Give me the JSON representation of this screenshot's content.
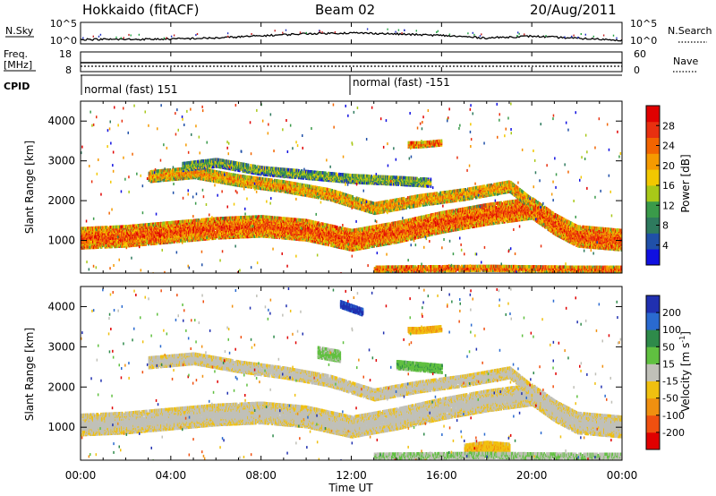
{
  "header": {
    "station": "Hokkaido (fitACF)",
    "beam": "Beam 02",
    "date": "20/Aug/2011"
  },
  "aux_panels": {
    "nsky_label": "N.Sky",
    "nsky_ticks": [
      "10^5",
      "10^0"
    ],
    "nsearch_label": "N.Search",
    "nsearch_ticks": [
      "10^5",
      "10^0"
    ],
    "freq_label_1": "Freq.",
    "freq_label_2": "[MHz]",
    "freq_ticks": [
      "18",
      "8"
    ],
    "nave_label": "Nave",
    "nave_ticks": [
      "60",
      "0"
    ],
    "cpid_label": "CPID",
    "cpid_segments": [
      {
        "label": "normal (fast) 151",
        "start_hour": 0
      },
      {
        "label": "normal (fast) -151",
        "start_hour": 12
      }
    ]
  },
  "axes": {
    "xlabel": "Time UT",
    "x_ticks": [
      "00:00",
      "04:00",
      "08:00",
      "12:00",
      "16:00",
      "20:00",
      "00:00"
    ],
    "ylabel": "Slant Range [km]",
    "y_ticks": [
      "1000",
      "2000",
      "3000",
      "4000"
    ]
  },
  "colorbars": {
    "power": {
      "label": "Power [dB]",
      "ticks": [
        "4",
        "8",
        "12",
        "16",
        "20",
        "24",
        "28"
      ],
      "colors": [
        "#1010e0",
        "#2050a8",
        "#2e7a5e",
        "#3a9a4a",
        "#a8c818",
        "#f2c800",
        "#f59a00",
        "#f26400",
        "#e83010",
        "#e00000"
      ]
    },
    "velocity": {
      "label": "Velocity [m s",
      "label_exp": "-1",
      "label_close": "]",
      "ticks": [
        "200",
        "100",
        "50",
        "15",
        "-15",
        "-50",
        "-100",
        "-200"
      ],
      "colors": [
        "#2030b0",
        "#2a6ad0",
        "#2e8a4a",
        "#60c040",
        "#c0c0b8",
        "#f0c010",
        "#f09010",
        "#f05010",
        "#e00000"
      ]
    }
  },
  "chart_data": [
    {
      "type": "line",
      "name": "N.Sky / N.Search",
      "x_unit": "hour UT",
      "x": [
        0,
        2,
        4,
        6,
        8,
        10,
        12,
        13,
        14,
        16,
        18,
        20,
        22,
        24
      ],
      "y": [
        1.0,
        1.0,
        1.1,
        1.4,
        2.0,
        2.6,
        2.8,
        2.7,
        2.5,
        2.1,
        1.4,
        1.9,
        1.3,
        0.8
      ],
      "y_scale": "log10",
      "ylim_exponent": [
        0,
        5
      ]
    },
    {
      "type": "line",
      "name": "Freq.",
      "x": [
        0,
        24
      ],
      "y": [
        12.5,
        12.5
      ],
      "ylim": [
        8,
        18
      ]
    },
    {
      "type": "line",
      "name": "Nave",
      "x": [
        0,
        24
      ],
      "y": [
        18,
        18
      ],
      "ylim": [
        0,
        60
      ]
    },
    {
      "type": "heatmap",
      "name": "Power",
      "x_unit": "hour UT",
      "xlim": [
        0,
        24
      ],
      "y_unit": "km",
      "ylim": [
        180,
        4500
      ],
      "clim": [
        0,
        32
      ],
      "bands": [
        {
          "x": [
            0,
            2,
            4,
            6,
            8,
            10,
            12,
            14,
            16,
            18,
            20,
            21,
            22,
            24
          ],
          "y": [
            1100,
            1150,
            1250,
            1350,
            1400,
            1300,
            1050,
            1250,
            1500,
            1700,
            1850,
            1450,
            1150,
            1050
          ],
          "width": 500,
          "value": 26
        },
        {
          "x": [
            3,
            5,
            7,
            9,
            11,
            13,
            15,
            17,
            19,
            20
          ],
          "y": [
            2650,
            2750,
            2550,
            2400,
            2200,
            1850,
            2050,
            2200,
            2400,
            1950
          ],
          "width": 260,
          "value": 22
        },
        {
          "x": [
            4.5,
            6,
            8,
            10,
            12,
            14,
            15.5
          ],
          "y": [
            2900,
            3000,
            2800,
            2700,
            2600,
            2550,
            2500
          ],
          "width": 200,
          "value": 14
        },
        {
          "x": [
            14.5,
            15,
            16
          ],
          "y": [
            3450,
            3450,
            3500
          ],
          "width": 120,
          "value": 26
        },
        {
          "x": [
            13,
            15,
            18,
            20,
            22,
            24
          ],
          "y": [
            320,
            330,
            340,
            330,
            320,
            320
          ],
          "width": 110,
          "value": 26
        }
      ]
    },
    {
      "type": "heatmap",
      "name": "Velocity",
      "x_unit": "hour UT",
      "xlim": [
        0,
        24
      ],
      "y_unit": "km",
      "ylim": [
        180,
        4500
      ],
      "clim": [
        -200,
        200
      ],
      "bands": [
        {
          "x": [
            0,
            2,
            4,
            6,
            8,
            10,
            12,
            14,
            16,
            18,
            20,
            21,
            22,
            24
          ],
          "y": [
            1100,
            1150,
            1250,
            1350,
            1400,
            1300,
            1050,
            1250,
            1500,
            1700,
            1850,
            1450,
            1150,
            1050
          ],
          "width": 500,
          "value": 0
        },
        {
          "x": [
            3,
            5,
            7,
            9,
            11,
            13,
            15,
            17,
            19,
            20
          ],
          "y": [
            2650,
            2750,
            2550,
            2400,
            2200,
            1850,
            2050,
            2200,
            2400,
            1950
          ],
          "width": 260,
          "value": 0
        },
        {
          "x": [
            10.5,
            11,
            11.5
          ],
          "y": [
            2900,
            2850,
            2800
          ],
          "width": 250,
          "value": 40
        },
        {
          "x": [
            14,
            15,
            16
          ],
          "y": [
            2600,
            2550,
            2500
          ],
          "width": 200,
          "value": 60
        },
        {
          "x": [
            14.5,
            15,
            16
          ],
          "y": [
            3450,
            3450,
            3500
          ],
          "width": 120,
          "value": -70
        },
        {
          "x": [
            11.5,
            12,
            12.5
          ],
          "y": [
            4100,
            4000,
            3900
          ],
          "width": 150,
          "value": 180
        },
        {
          "x": [
            17,
            18,
            19
          ],
          "y": [
            480,
            550,
            500
          ],
          "width": 260,
          "value": -60
        },
        {
          "x": [
            13,
            15,
            18,
            20,
            22,
            24
          ],
          "y": [
            320,
            330,
            340,
            330,
            320,
            320
          ],
          "width": 110,
          "value": 30
        }
      ]
    }
  ]
}
